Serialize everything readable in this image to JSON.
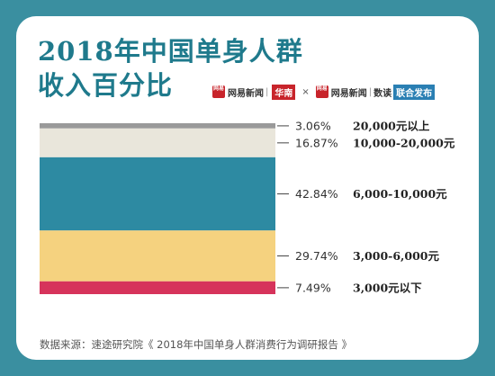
{
  "title_line1": "2018年中国单身人群",
  "title_line2": "收入百分比",
  "brands": {
    "brand1": {
      "logo": "网易",
      "name": "网易新闻",
      "tag": "华南"
    },
    "cross": "×",
    "brand2": {
      "logo": "网易",
      "name": "网易新闻",
      "section": "数读",
      "tag": "联合发布"
    }
  },
  "chart_data": {
    "type": "bar",
    "stacked": true,
    "orientation": "vertical-stack",
    "unit": "%",
    "categories": [
      "20,000元以上",
      "10,000-20,000元",
      "6,000-10,000元",
      "3,000-6,000元",
      "3,000元以下"
    ],
    "values": [
      3.06,
      16.87,
      42.84,
      29.74,
      7.49
    ],
    "labels": [
      "3.06%",
      "16.87%",
      "42.84%",
      "29.74%",
      "7.49%"
    ],
    "colors": [
      "#9a9a9a",
      "#e9e6db",
      "#2d8aa2",
      "#f5d27f",
      "#d6335b"
    ]
  },
  "source": "数据来源：速途研究院《 2018年中国单身人群消费行为调研报告 》"
}
